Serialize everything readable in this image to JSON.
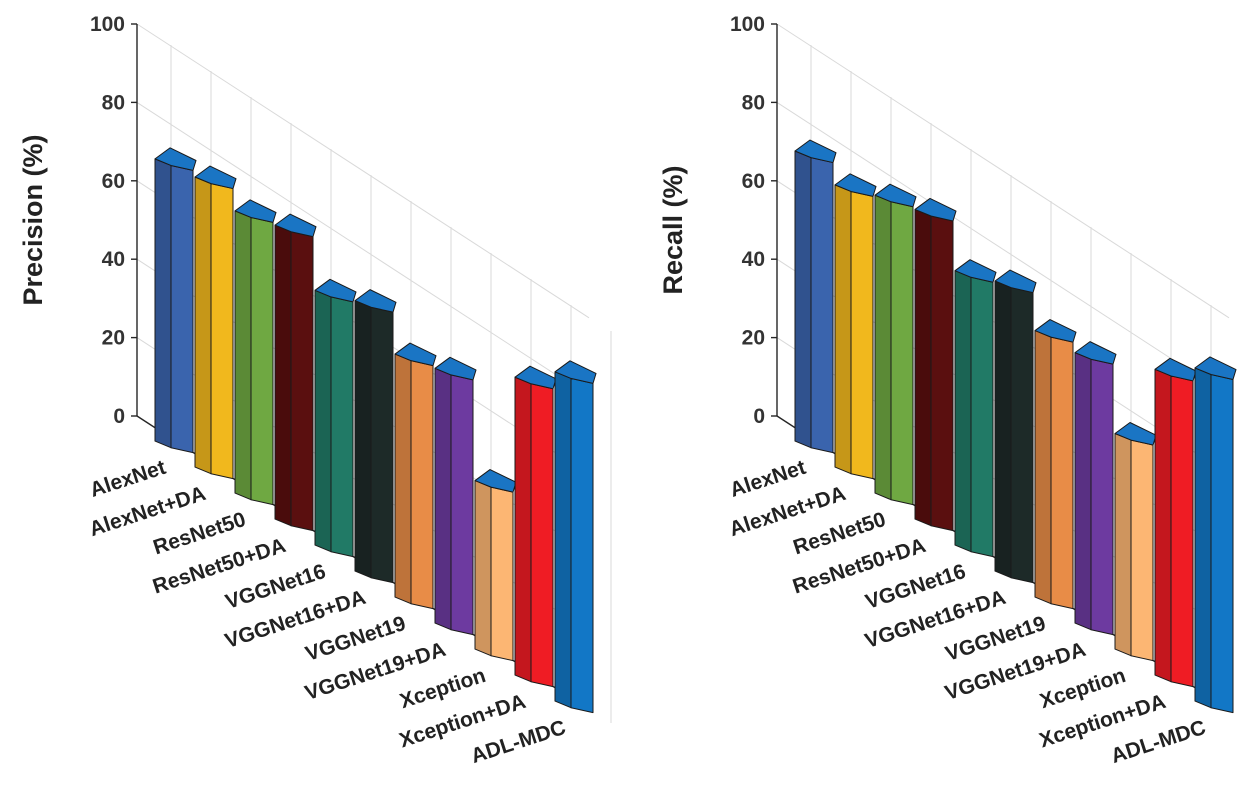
{
  "chart_data": [
    {
      "type": "bar3d",
      "ylabel": "Precision (%)",
      "ylim": [
        0,
        100
      ],
      "yticks": [
        "0",
        "20",
        "40",
        "60",
        "80",
        "100"
      ],
      "categories": [
        "AlexNet",
        "AlexNet+DA",
        "ResNet50",
        "ResNet50+DA",
        "VGGNet16",
        "VGGNet16+DA",
        "VGGNet19",
        "VGGNet19+DA",
        "Xception",
        "Xception+DA",
        "ADL-MDC"
      ],
      "values": [
        72,
        74,
        72,
        75,
        65,
        69,
        62,
        65,
        43,
        76,
        84
      ],
      "grid": true
    },
    {
      "type": "bar3d",
      "ylabel": "Recall (%)",
      "ylim": [
        0,
        100
      ],
      "yticks": [
        "0",
        "20",
        "40",
        "60",
        "80",
        "100"
      ],
      "categories": [
        "AlexNet",
        "AlexNet+DA",
        "ResNet50",
        "ResNet50+DA",
        "VGGNet16",
        "VGGNet16+DA",
        "VGGNet19",
        "VGGNet19+DA",
        "Xception",
        "Xception+DA",
        "ADL-MDC"
      ],
      "values": [
        74,
        72,
        76,
        79,
        70,
        74,
        68,
        69,
        55,
        78,
        85
      ],
      "grid": true
    }
  ],
  "colors": {
    "series": [
      "#3a64ad",
      "#f1b81d",
      "#6fa842",
      "#5a0f0f",
      "#217a66",
      "#1d2a28",
      "#e88c47",
      "#6d3aa0",
      "#fcb673",
      "#ef1c24",
      "#1277c6"
    ],
    "top": "#1a75c4"
  }
}
